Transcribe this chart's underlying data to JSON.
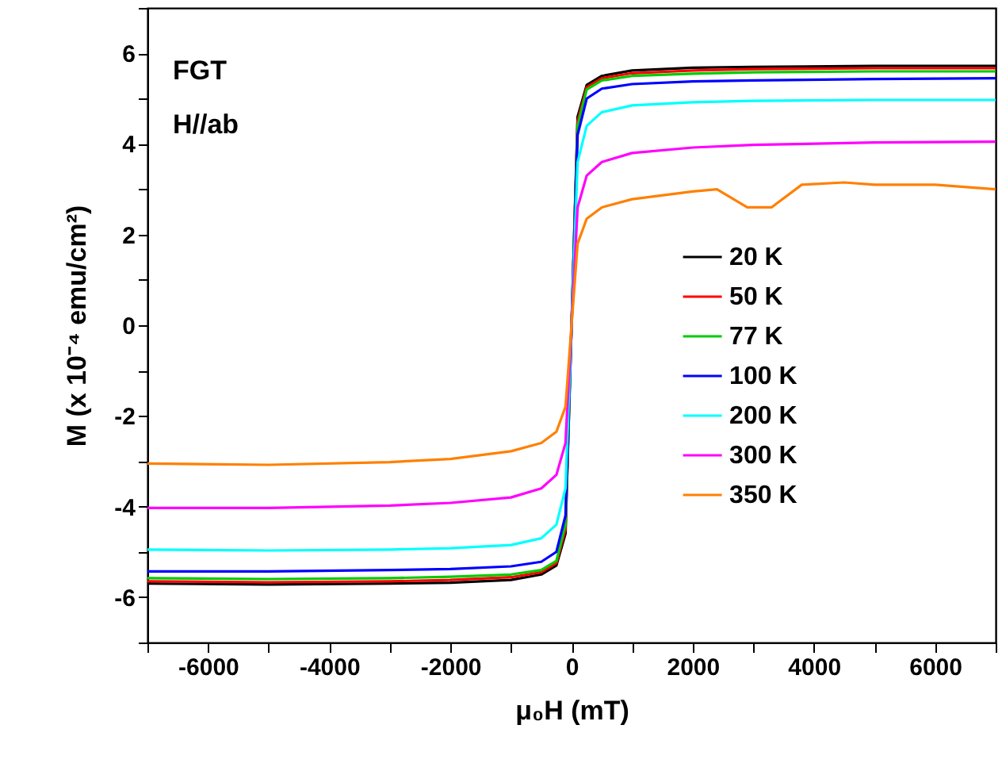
{
  "chart_data": {
    "type": "line",
    "xlabel": "μ₀H (mT)",
    "ylabel": "M (x 10⁻⁴ emu/cm²)",
    "annotations": [
      "FGT",
      "H//ab"
    ],
    "x": [
      -7000,
      -5000,
      -3000,
      -2000,
      -1000,
      -500,
      -250,
      -100,
      0,
      100,
      250,
      500,
      1000,
      2000,
      3000,
      5000,
      7000
    ],
    "series": [
      {
        "name": "20 K",
        "color": "#000000",
        "values": [
          -5.7,
          -5.72,
          -5.7,
          -5.68,
          -5.62,
          -5.5,
          -5.3,
          -4.6,
          0,
          4.6,
          5.3,
          5.5,
          5.62,
          5.68,
          5.7,
          5.72,
          5.72
        ]
      },
      {
        "name": "50 K",
        "color": "#ff0000",
        "values": [
          -5.65,
          -5.67,
          -5.65,
          -5.62,
          -5.56,
          -5.45,
          -5.25,
          -4.5,
          0,
          4.5,
          5.25,
          5.45,
          5.56,
          5.62,
          5.65,
          5.67,
          5.67
        ]
      },
      {
        "name": "77 K",
        "color": "#00cc00",
        "values": [
          -5.58,
          -5.6,
          -5.58,
          -5.55,
          -5.5,
          -5.4,
          -5.2,
          -4.4,
          0,
          4.4,
          5.2,
          5.4,
          5.5,
          5.55,
          5.58,
          5.6,
          5.6
        ]
      },
      {
        "name": "100 K",
        "color": "#0000ff",
        "values": [
          -5.43,
          -5.43,
          -5.4,
          -5.38,
          -5.32,
          -5.22,
          -5.0,
          -4.2,
          0,
          4.2,
          5.0,
          5.22,
          5.32,
          5.38,
          5.4,
          5.43,
          5.45
        ]
      },
      {
        "name": "200 K",
        "color": "#00ffff",
        "values": [
          -4.95,
          -4.97,
          -4.95,
          -4.92,
          -4.85,
          -4.7,
          -4.4,
          -3.6,
          0,
          3.6,
          4.4,
          4.7,
          4.85,
          4.92,
          4.95,
          4.97,
          4.97
        ]
      },
      {
        "name": "300 K",
        "color": "#ff00ff",
        "values": [
          -4.03,
          -4.03,
          -3.98,
          -3.92,
          -3.8,
          -3.6,
          -3.3,
          -2.6,
          0,
          2.6,
          3.3,
          3.6,
          3.8,
          3.92,
          3.98,
          4.03,
          4.05
        ]
      },
      {
        "name": "350 K",
        "color": "#ff8000",
        "x": [
          -7000,
          -5000,
          -3000,
          -2000,
          -1000,
          -500,
          -250,
          -100,
          0,
          100,
          250,
          500,
          1000,
          2000,
          2400,
          2900,
          3300,
          3800,
          4500,
          5000,
          6000,
          7000
        ],
        "values": [
          -3.05,
          -3.08,
          -3.02,
          -2.95,
          -2.78,
          -2.6,
          -2.35,
          -1.8,
          0,
          1.8,
          2.35,
          2.6,
          2.78,
          2.95,
          3.0,
          2.6,
          2.6,
          3.1,
          3.15,
          3.1,
          3.1,
          3.0
        ]
      }
    ],
    "xlim": [
      -7000,
      7000
    ],
    "xticks": [
      {
        "value": -7000,
        "label": null
      },
      -6000,
      {
        "value": -5000,
        "label": null
      },
      -4000,
      {
        "value": -3000,
        "label": null
      },
      -2000,
      {
        "value": -1000,
        "label": null
      },
      0,
      {
        "value": 1000,
        "label": null
      },
      2000,
      {
        "value": 3000,
        "label": null
      },
      4000,
      {
        "value": 5000,
        "label": null
      },
      6000,
      {
        "value": 7000,
        "label": null
      }
    ],
    "ylim": [
      -7,
      7
    ],
    "yticks": [
      {
        "value": -7,
        "label": null
      },
      -6,
      {
        "value": -5,
        "label": null
      },
      -4,
      {
        "value": -3,
        "label": null
      },
      -2,
      {
        "value": -1,
        "label": null
      },
      0,
      {
        "value": 1,
        "label": null
      },
      2,
      {
        "value": 3,
        "label": null
      },
      4,
      {
        "value": 5,
        "label": null
      },
      6,
      {
        "value": 7,
        "label": null
      }
    ],
    "grid": false,
    "legend": "right",
    "marker": "none",
    "line_style": "solid"
  }
}
